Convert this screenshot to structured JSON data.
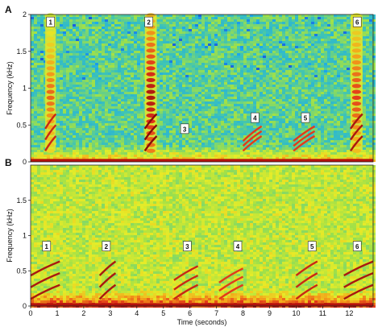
{
  "chart_data": [
    {
      "type": "heatmap",
      "panel_label": "A",
      "ylabel": "Frequency (kHz)",
      "ylim": [
        0,
        2
      ],
      "yticks": [
        {
          "value": 0,
          "label": "0"
        },
        {
          "value": 0.5,
          "label": "0.5"
        },
        {
          "value": 1,
          "label": "1"
        },
        {
          "value": 1.5,
          "label": "1.5"
        },
        {
          "value": 2,
          "label": "2"
        }
      ],
      "xlim": [
        0,
        12.9
      ],
      "background_color": "#3fc4b4",
      "colormap": [
        "#1a3fd6",
        "#1aa9f0",
        "#3fc4b4",
        "#9ee04a",
        "#e6ec28",
        "#f4a31a",
        "#e2331a",
        "#8a0a0a"
      ],
      "annotations": [
        {
          "label": "1",
          "time": 0.75,
          "freq": 1.9
        },
        {
          "label": "2",
          "time": 4.45,
          "freq": 1.9
        },
        {
          "label": "3",
          "time": 5.8,
          "freq": 0.45
        },
        {
          "label": "4",
          "time": 8.45,
          "freq": 0.6
        },
        {
          "label": "5",
          "time": 10.35,
          "freq": 0.6
        },
        {
          "label": "6",
          "time": 12.3,
          "freq": 1.9
        }
      ],
      "calls": [
        {
          "start": 0.55,
          "end": 0.95,
          "low": 0.15,
          "high": 2.0,
          "intensity": 0.8
        },
        {
          "start": 4.3,
          "end": 4.75,
          "low": 0.15,
          "high": 2.0,
          "intensity": 0.95
        },
        {
          "start": 8.0,
          "end": 8.7,
          "low": 0.15,
          "high": 0.35,
          "intensity": 0.75
        },
        {
          "start": 9.9,
          "end": 10.7,
          "low": 0.15,
          "high": 0.35,
          "intensity": 0.75
        },
        {
          "start": 12.05,
          "end": 12.5,
          "low": 0.15,
          "high": 2.0,
          "intensity": 0.85
        }
      ]
    },
    {
      "type": "heatmap",
      "panel_label": "B",
      "xlabel": "Time (seconds)",
      "ylabel": "Frequency (kHz)",
      "ylim": [
        0,
        2
      ],
      "yticks": [
        {
          "value": 0,
          "label": "0"
        },
        {
          "value": 0.5,
          "label": "0.5"
        },
        {
          "value": 1,
          "label": "1"
        },
        {
          "value": 1.5,
          "label": "1.5"
        }
      ],
      "xlim": [
        0,
        12.9
      ],
      "xticks": [
        0,
        1,
        2,
        3,
        4,
        5,
        6,
        7,
        8,
        9,
        10,
        11,
        12
      ],
      "background_color": "#c9e636",
      "colormap": [
        "#1a3fd6",
        "#1aa9f0",
        "#3fc4b4",
        "#9ee04a",
        "#e6ec28",
        "#f4a31a",
        "#e2331a",
        "#8a0a0a"
      ],
      "annotations": [
        {
          "label": "1",
          "time": 0.6,
          "freq": 0.85
        },
        {
          "label": "2",
          "time": 2.85,
          "freq": 0.85
        },
        {
          "label": "3",
          "time": 5.9,
          "freq": 0.85
        },
        {
          "label": "4",
          "time": 7.8,
          "freq": 0.85
        },
        {
          "label": "5",
          "time": 10.6,
          "freq": 0.85
        },
        {
          "label": "6",
          "time": 12.3,
          "freq": 0.85
        }
      ],
      "calls": [
        {
          "start": 0.0,
          "end": 1.1,
          "low": 0.1,
          "high": 0.65,
          "intensity": 0.85
        },
        {
          "start": 2.6,
          "end": 3.2,
          "low": 0.1,
          "high": 0.65,
          "intensity": 0.85
        },
        {
          "start": 5.4,
          "end": 6.3,
          "low": 0.1,
          "high": 0.5,
          "intensity": 0.8
        },
        {
          "start": 7.1,
          "end": 8.0,
          "low": 0.1,
          "high": 0.45,
          "intensity": 0.75
        },
        {
          "start": 10.0,
          "end": 10.8,
          "low": 0.1,
          "high": 0.6,
          "intensity": 0.8
        },
        {
          "start": 11.8,
          "end": 12.9,
          "low": 0.1,
          "high": 0.6,
          "intensity": 0.85
        }
      ]
    }
  ]
}
